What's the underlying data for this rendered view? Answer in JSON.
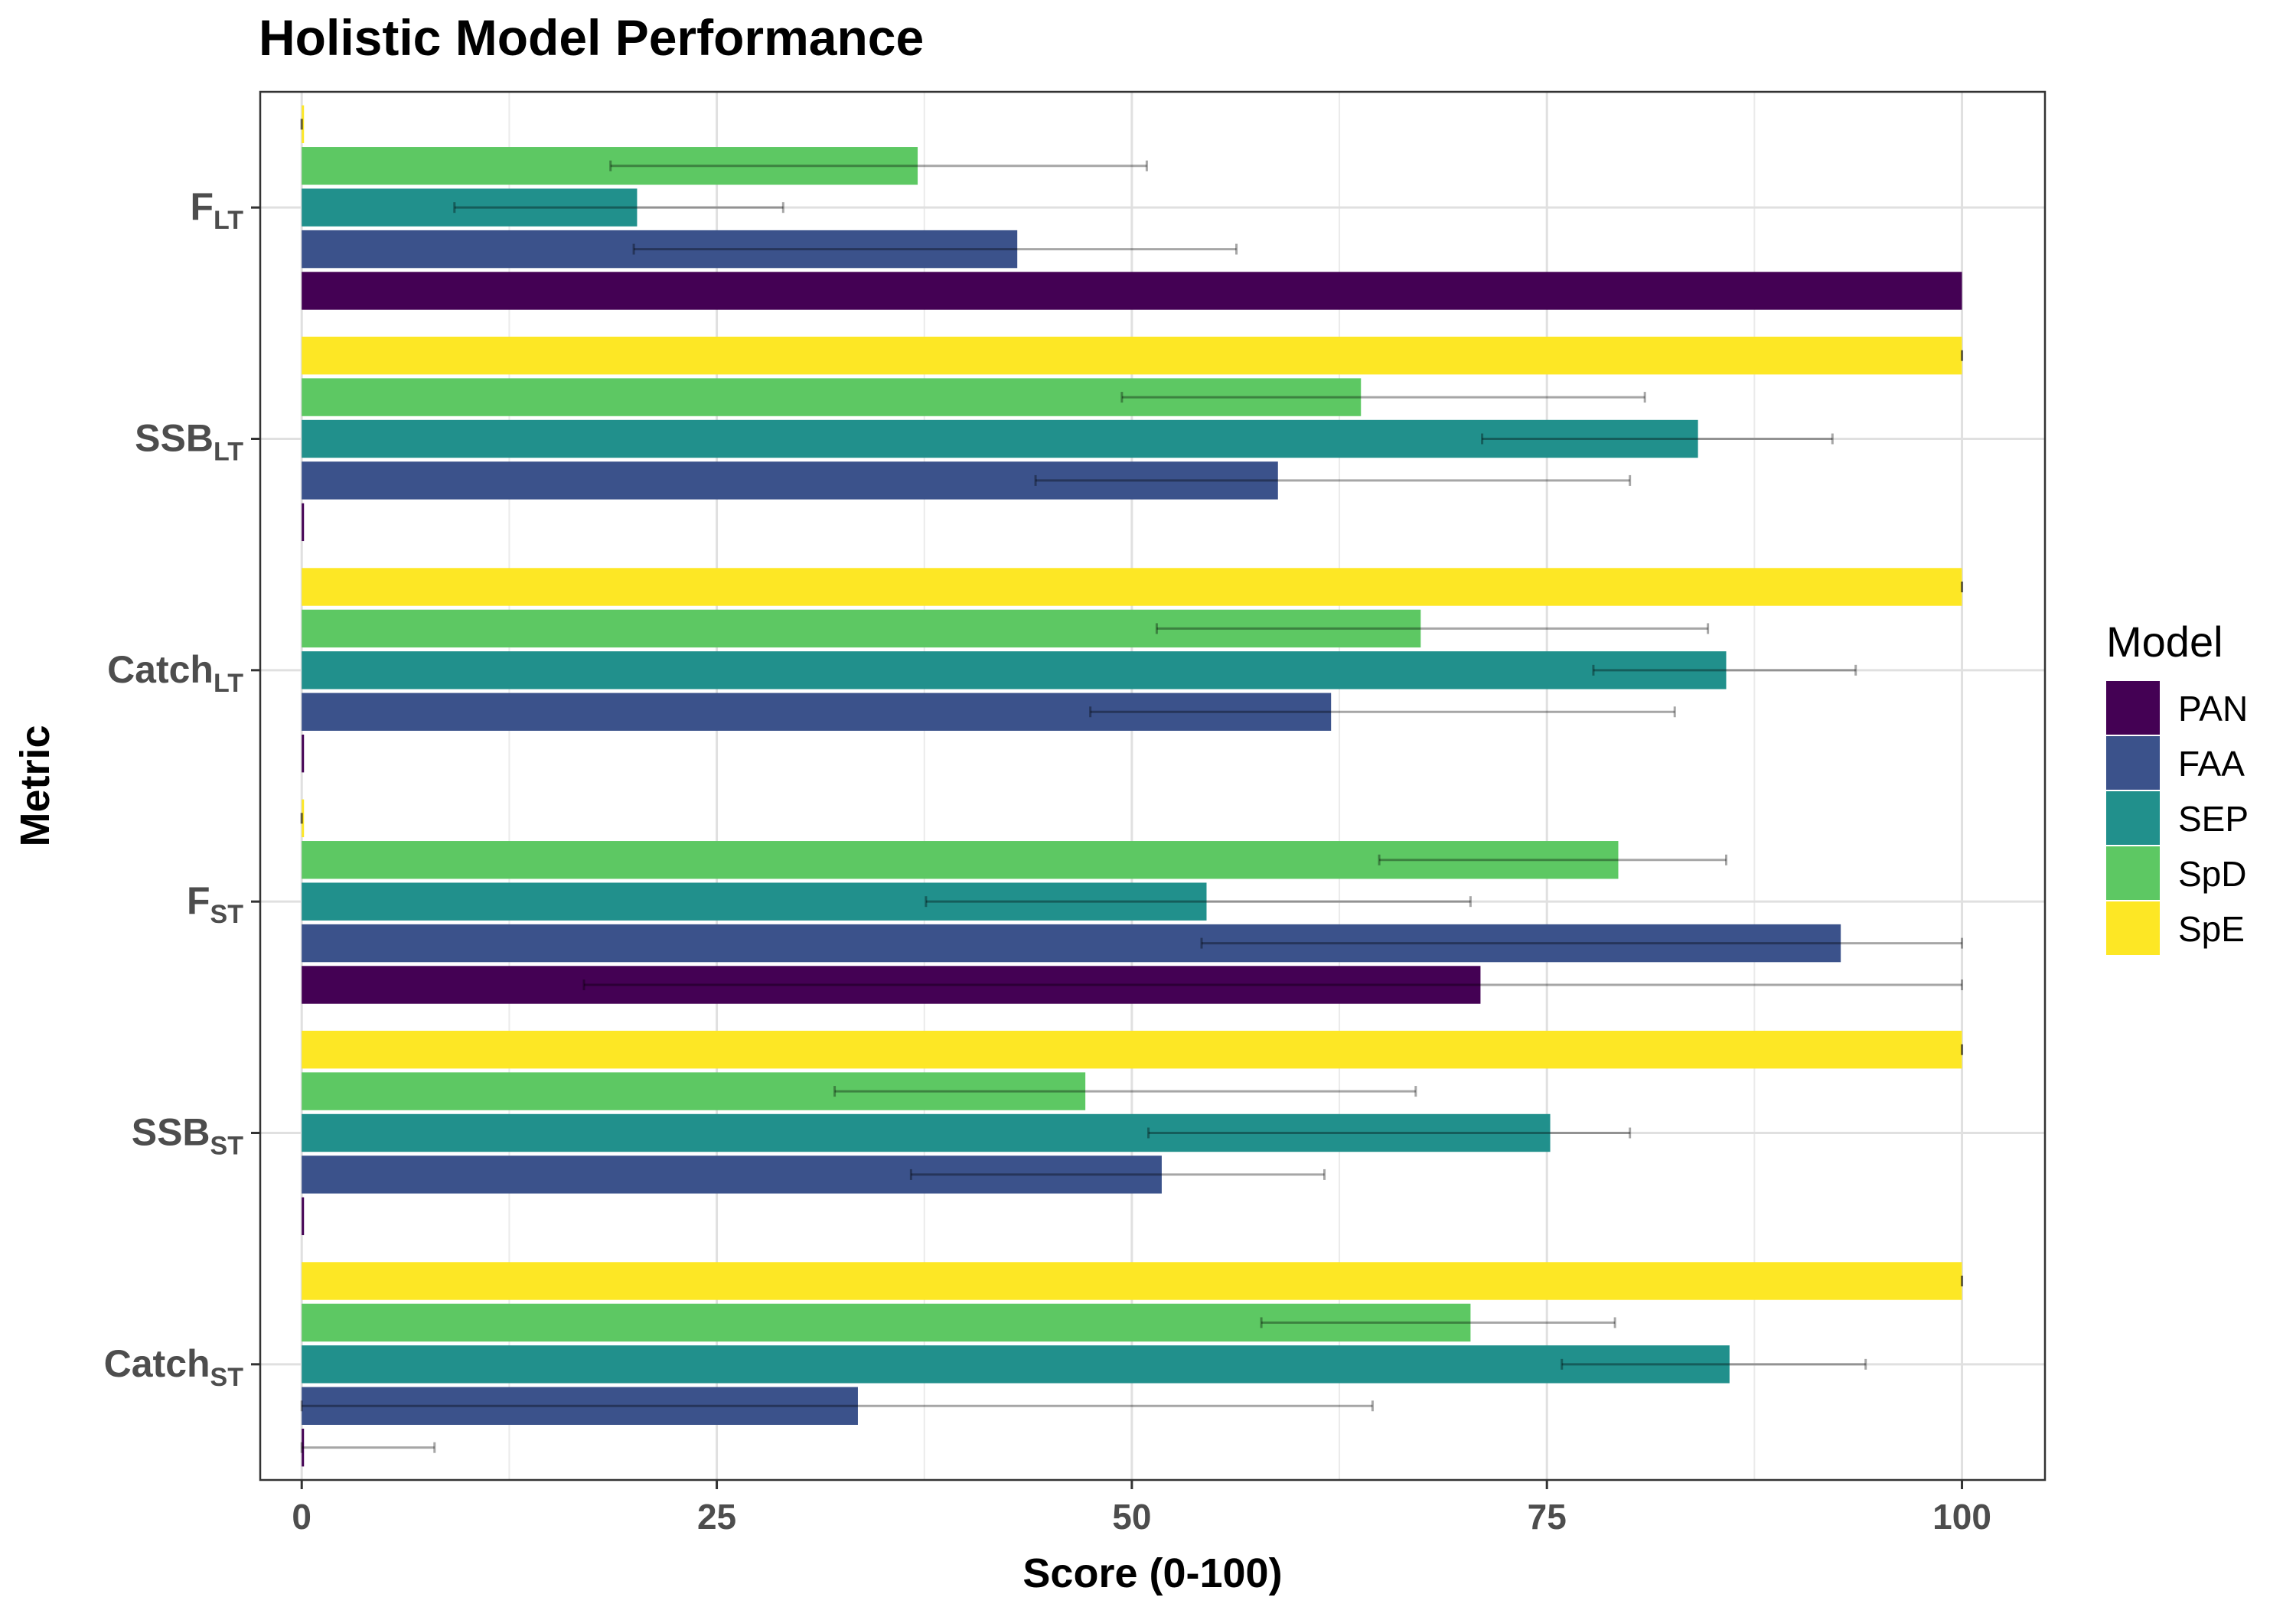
{
  "chart_data": {
    "type": "bar",
    "orientation": "horizontal",
    "title": "Holistic Model Performance",
    "xlabel": "Score (0-100)",
    "ylabel": "Metric",
    "xlim": [
      -2.5,
      105
    ],
    "xticks": [
      0,
      25,
      50,
      75,
      100
    ],
    "grid": true,
    "legend": {
      "title": "Model",
      "position": "right"
    },
    "categories": [
      {
        "base": "Catch",
        "sub": "ST"
      },
      {
        "base": "SSB",
        "sub": "ST"
      },
      {
        "base": "F",
        "sub": "ST"
      },
      {
        "base": "Catch",
        "sub": "LT"
      },
      {
        "base": "SSB",
        "sub": "LT"
      },
      {
        "base": "F",
        "sub": "LT"
      }
    ],
    "series": [
      {
        "name": "PAN",
        "color": "#440154",
        "values": [
          0.1,
          0.1,
          71,
          0.1,
          0.1,
          100
        ],
        "err_low": [
          0,
          null,
          17,
          null,
          null,
          null
        ],
        "err_high": [
          8,
          null,
          100,
          null,
          null,
          null
        ]
      },
      {
        "name": "FAA",
        "color": "#3B528B",
        "values": [
          33.5,
          51.8,
          92.7,
          62,
          58.8,
          43.1
        ],
        "err_low": [
          0,
          36.7,
          54.2,
          47.5,
          44.2,
          20
        ],
        "err_high": [
          64.5,
          61.6,
          100,
          82.7,
          80,
          56.3
        ]
      },
      {
        "name": "SEP",
        "color": "#21908C",
        "values": [
          86,
          75.2,
          54.5,
          85.8,
          84.1,
          20.2
        ],
        "err_low": [
          75.9,
          51,
          37.6,
          77.8,
          71.1,
          9.2
        ],
        "err_high": [
          94.2,
          80,
          70.4,
          93.6,
          92.2,
          29
        ],
        "err_low_note": ""
      },
      {
        "name": "SpD",
        "color": "#5DC863",
        "values": [
          70.4,
          47.2,
          79.3,
          67.4,
          63.8,
          37.1
        ],
        "err_low": [
          57.8,
          32.1,
          64.9,
          51.5,
          49.4,
          18.6
        ],
        "err_high": [
          79.1,
          67.1,
          85.8,
          84.7,
          80.9,
          50.9
        ]
      },
      {
        "name": "SpE",
        "color": "#FDE725",
        "values": [
          100,
          100,
          0.1,
          100,
          100,
          0.1
        ],
        "err_low": [
          100,
          100,
          0,
          100,
          100,
          0
        ],
        "err_high": [
          100,
          100,
          0,
          100,
          100,
          0
        ]
      }
    ]
  }
}
